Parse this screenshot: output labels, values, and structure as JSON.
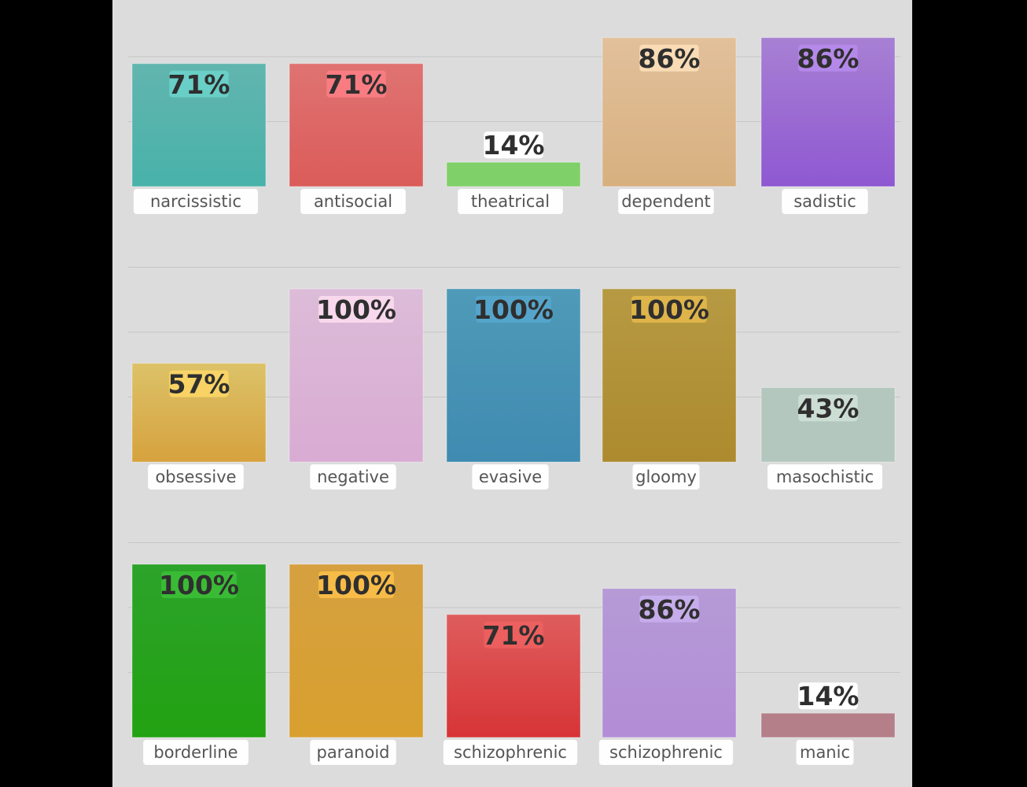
{
  "chart_data": {
    "type": "bar",
    "ylim": [
      0,
      100
    ],
    "grid": true,
    "value_suffix": "%",
    "panels": [
      {
        "categories": [
          "narcissistic",
          "antisocial",
          "theatrical",
          "dependent",
          "sadistic"
        ],
        "values": [
          71,
          71,
          14,
          86,
          86
        ],
        "colors": [
          [
            "#62b5af",
            "#48b2a9"
          ],
          [
            "#df7371",
            "#db5c5a"
          ],
          [
            "#7fd068",
            "#7fd068"
          ],
          [
            "#e2c09b",
            "#d7b07f"
          ],
          [
            "#a780d3",
            "#8f58d2"
          ]
        ],
        "chip_colors": [
          "#6cd6cd",
          "#ff8088",
          "#ffffff",
          "#ffe3bd",
          "#b98cf0"
        ]
      },
      {
        "categories": [
          "obsessive",
          "negative",
          "evasive",
          "gloomy",
          "masochistic"
        ],
        "values": [
          57,
          100,
          100,
          100,
          43
        ],
        "colors": [
          [
            "#dcc268",
            "#d6a23e"
          ],
          [
            "#dcbcd8",
            "#d9abd3"
          ],
          [
            "#4f9ab8",
            "#3f8bb1"
          ],
          [
            "#b69a43",
            "#ad8a2e"
          ],
          [
            "#b3c7be",
            "#b3c7be"
          ]
        ],
        "chip_colors": [
          "#ffd866",
          "#ffe0f3",
          "#57a8d0",
          "#e8bb4c",
          "#d2e2da"
        ]
      },
      {
        "categories": [
          "borderline",
          "paranoid",
          "schizophrenic",
          "schizophrenic",
          "manic"
        ],
        "values": [
          100,
          100,
          71,
          86,
          14
        ],
        "colors": [
          [
            "#2ca32a",
            "#23a212"
          ],
          [
            "#d6a040",
            "#d8a02e"
          ],
          [
            "#df5d5d",
            "#d73436"
          ],
          [
            "#b59ad6",
            "#b38dd6"
          ],
          [
            "#b47f89",
            "#b47f89"
          ]
        ],
        "chip_colors": [
          "#3fc03a",
          "#ffc24a",
          "#f06262",
          "#cab1f0",
          "#ffffff"
        ]
      }
    ]
  }
}
